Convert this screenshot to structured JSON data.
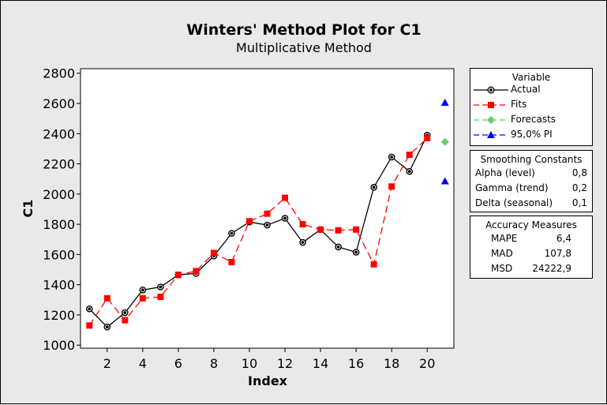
{
  "chart_data": {
    "type": "line",
    "title": "Winters' Method Plot for C1",
    "subtitle": "Multiplicative Method",
    "xlabel": "Index",
    "ylabel": "C1",
    "xlim": [
      0.5,
      21.5
    ],
    "ylim": [
      980,
      2830
    ],
    "xticks": [
      2,
      4,
      6,
      8,
      10,
      12,
      14,
      16,
      18,
      20
    ],
    "xtick_labels": [
      "2",
      "4",
      "6",
      "8",
      "10",
      "12",
      "14",
      "16",
      "18",
      "20"
    ],
    "yticks": [
      1000,
      1200,
      1400,
      1600,
      1800,
      2000,
      2200,
      2400,
      2600,
      2800
    ],
    "ytick_labels": [
      "1000",
      "1200",
      "1400",
      "1600",
      "1800",
      "2000",
      "2200",
      "2400",
      "2600",
      "2800"
    ],
    "grid": false,
    "legend_position": "right",
    "series": [
      {
        "name": "Actual",
        "color": "#000000",
        "marker": "circle",
        "line_style": "solid",
        "x": [
          1,
          2,
          3,
          4,
          5,
          6,
          7,
          8,
          9,
          10,
          11,
          12,
          13,
          14,
          15,
          16,
          17,
          18,
          19,
          20
        ],
        "values": [
          1240,
          1120,
          1215,
          1365,
          1385,
          1465,
          1475,
          1590,
          1740,
          1815,
          1795,
          1840,
          1680,
          1765,
          1650,
          1615,
          2045,
          2245,
          2150,
          2390
        ]
      },
      {
        "name": "Fits",
        "color": "#ff0000",
        "marker": "square",
        "line_style": "dashed",
        "x": [
          1,
          2,
          3,
          4,
          5,
          6,
          7,
          8,
          9,
          10,
          11,
          12,
          13,
          14,
          15,
          16,
          17,
          18,
          19,
          20
        ],
        "values": [
          1130,
          1310,
          1165,
          1310,
          1320,
          1465,
          1490,
          1610,
          1550,
          1820,
          1870,
          1975,
          1800,
          1765,
          1760,
          1765,
          1535,
          2050,
          2260,
          2370
        ]
      },
      {
        "name": "Forecasts",
        "color": "#66cc66",
        "marker": "diamond",
        "line_style": "dashed",
        "x": [
          21
        ],
        "values": [
          2345
        ]
      },
      {
        "name": "95,0% PI",
        "color": "#0000ff",
        "marker": "triangle",
        "line_style": "dashed",
        "x": [
          21,
          21
        ],
        "values": [
          2605,
          2085
        ]
      }
    ]
  },
  "legend": {
    "title": "Variable",
    "items": [
      "Actual",
      "Fits",
      "Forecasts",
      "95,0% PI"
    ]
  },
  "smoothing": {
    "title": "Smoothing Constants",
    "rows": [
      {
        "label": "Alpha (level)",
        "value": "0,8"
      },
      {
        "label": "Gamma (trend)",
        "value": "0,2"
      },
      {
        "label": "Delta (seasonal)",
        "value": "0,1"
      }
    ]
  },
  "accuracy": {
    "title": "Accuracy Measures",
    "rows": [
      {
        "label": "MAPE",
        "value": "6,4"
      },
      {
        "label": "MAD",
        "value": "107,8"
      },
      {
        "label": "MSD",
        "value": "24222,9"
      }
    ]
  }
}
